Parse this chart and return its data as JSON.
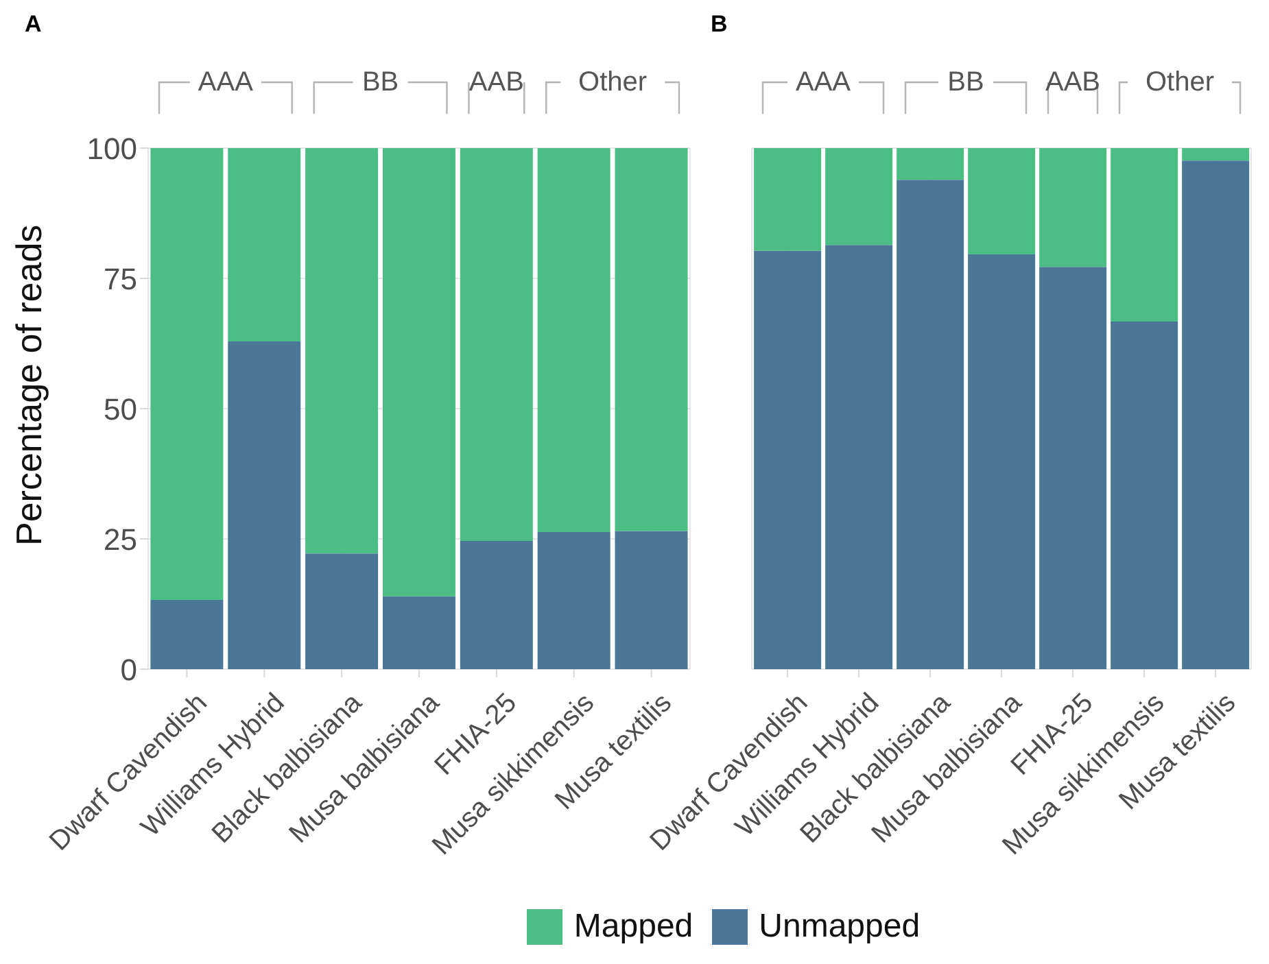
{
  "chart_data": [
    {
      "type": "bar",
      "title": "A",
      "stacked": true,
      "ylabel": "Percentage of reads",
      "categories": [
        "Dwarf Cavendish",
        "Williams Hybrid",
        "Black balbisiana",
        "Musa balbisiana",
        "FHIA-25",
        "Musa sikkimensis",
        "Musa textilis"
      ],
      "series": [
        {
          "name": "Unmapped",
          "color": "#4a7698",
          "values": [
            13.3,
            62.9,
            22.2,
            14.0,
            24.6,
            26.3,
            26.5
          ]
        },
        {
          "name": "Mapped",
          "color": "#4cbe85",
          "values": [
            86.7,
            37.1,
            77.8,
            86.0,
            75.4,
            73.7,
            73.5
          ]
        }
      ],
      "ylim": [
        0,
        100
      ],
      "yticks": [
        0,
        25,
        50,
        75,
        100
      ],
      "grid": true,
      "legend": "bottom",
      "annotations": [
        "AAA",
        "BB",
        "AAB",
        "Other"
      ]
    },
    {
      "type": "bar",
      "title": "B",
      "stacked": true,
      "categories": [
        "Dwarf Cavendish",
        "Williams Hybrid",
        "Black balbisiana",
        "Musa balbisiana",
        "FHIA-25",
        "Musa sikkimensis",
        "Musa textilis"
      ],
      "series": [
        {
          "color": "#4a7698",
          "values": [
            80.3,
            81.4,
            93.9,
            79.6,
            77.2,
            66.7,
            97.6
          ]
        },
        {
          "color": "#4cbe85",
          "values": [
            19.7,
            18.6,
            6.1,
            20.4,
            22.8,
            33.3,
            2.4
          ]
        }
      ],
      "ylim": [
        0,
        100
      ],
      "yticks": [
        0,
        25,
        50,
        75,
        100
      ],
      "grid": true,
      "tick_labels": "x",
      "annotations": [
        "AAA",
        "BB",
        "AAB",
        "Other"
      ]
    }
  ]
}
